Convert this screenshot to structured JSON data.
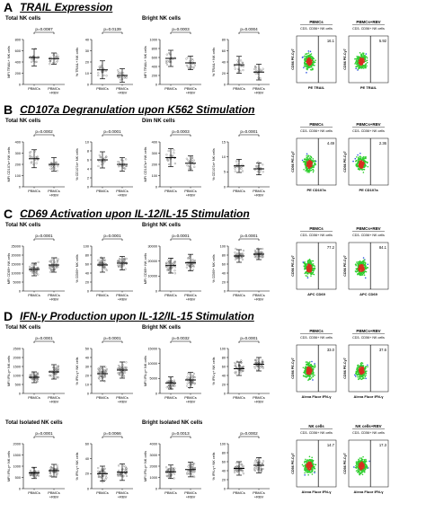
{
  "xcats": [
    "PBMCs",
    "PBMCs +RBV"
  ],
  "colors": {
    "bg": "#ffffff",
    "point": "#666666",
    "bar": "#000000",
    "flowLow": "#2b4fe0",
    "flowHigh": "#2ecf2e",
    "flowPeak": "#d83020"
  },
  "sections": [
    {
      "letter": "A",
      "title": "TRAIL Expression",
      "groups": [
        "Total NK cells",
        "Bright NK cells"
      ],
      "charts": [
        {
          "ylabel": "MFI TRAIL+ NK cells",
          "p": "p=0.0087",
          "yticks": [
            "0",
            "200",
            "400",
            "600",
            "800"
          ],
          "ymax": 800,
          "mean": [
            480,
            460
          ],
          "sd": [
            150,
            100
          ],
          "n": 18
        },
        {
          "ylabel": "% TRAIL+ NK cells",
          "p": "p=0.0139",
          "yticks": [
            "0",
            "10",
            "20",
            "30",
            "40"
          ],
          "ymax": 40,
          "mean": [
            13,
            8
          ],
          "sd": [
            8,
            6
          ],
          "n": 18
        },
        {
          "ylabel": "MFI TRAIL+ NK cells",
          "p": "p=0.0003",
          "yticks": [
            "0",
            "200",
            "400",
            "600",
            "800",
            "1000"
          ],
          "ymax": 1000,
          "mean": [
            580,
            480
          ],
          "sd": [
            180,
            150
          ],
          "n": 18
        },
        {
          "ylabel": "% TRAIL+ NK cells",
          "p": "p=0.0004",
          "yticks": [
            "0",
            "20",
            "40",
            "60",
            "80"
          ],
          "ymax": 80,
          "mean": [
            35,
            22
          ],
          "sd": [
            15,
            14
          ],
          "n": 18
        }
      ],
      "flow": {
        "panels": [
          "PBMCs",
          "PBMCs+RBV"
        ],
        "subtitle": "CD3- CD56+ NK cells",
        "ylabel": "CD56 PE-Cy7",
        "xlabel": "PE TRAIL",
        "values": [
          "16.1",
          "5.92"
        ]
      }
    },
    {
      "letter": "B",
      "title": "CD107a Degranulation upon K562 Stimulation",
      "groups": [
        "Total NK cells",
        "Dim NK cells"
      ],
      "charts": [
        {
          "ylabel": "MFI CD107a+ NK cells",
          "p": "p=0.0002",
          "yticks": [
            "0",
            "100",
            "200",
            "300",
            "400"
          ],
          "ymax": 400,
          "mean": [
            250,
            200
          ],
          "sd": [
            80,
            60
          ],
          "n": 18
        },
        {
          "ylabel": "% CD107a+ NK cells",
          "p": "p=0.0001",
          "yticks": [
            "0",
            "2",
            "4",
            "6",
            "8",
            "10"
          ],
          "ymax": 10,
          "mean": [
            6,
            5
          ],
          "sd": [
            1.8,
            1.5
          ],
          "n": 18
        },
        {
          "ylabel": "MFI CD107a+ NK cells",
          "p": "p=0.0003",
          "yticks": [
            "0",
            "100",
            "200",
            "300",
            "400"
          ],
          "ymax": 400,
          "mean": [
            260,
            210
          ],
          "sd": [
            80,
            65
          ],
          "n": 18
        },
        {
          "ylabel": "% CD107a+ NK cells",
          "p": "p=0.0001",
          "yticks": [
            "0",
            "5",
            "10",
            "15"
          ],
          "ymax": 15,
          "mean": [
            7,
            6
          ],
          "sd": [
            2.2,
            2
          ],
          "n": 18
        }
      ],
      "flow": {
        "panels": [
          "PBMCs",
          "PBMCs+RBV"
        ],
        "subtitle": "CD3- CD56+ NK cells",
        "ylabel": "CD56 PE-Cy7",
        "xlabel": "PE CD107a",
        "values": [
          "4.49",
          "2.36"
        ]
      }
    },
    {
      "letter": "C",
      "title": "CD69 Activation upon IL-12/IL-15 Stimulation",
      "groups": [
        "Total NK cells",
        "Bright NK cells"
      ],
      "charts": [
        {
          "ylabel": "MFI CD69+ NK cells",
          "p": "p=0.0001",
          "yticks": [
            "0",
            "5000",
            "10000",
            "15000",
            "20000",
            "25000"
          ],
          "ymax": 25000,
          "mean": [
            12000,
            14500
          ],
          "sd": [
            3500,
            4000
          ],
          "n": 40
        },
        {
          "ylabel": "% CD69+ NK cells",
          "p": "p=0.0001",
          "yticks": [
            "0",
            "20",
            "40",
            "60",
            "80",
            "100"
          ],
          "ymax": 100,
          "mean": [
            58,
            62
          ],
          "sd": [
            16,
            15
          ],
          "n": 40
        },
        {
          "ylabel": "MFI CD69+ NK cells",
          "p": "p=0.0001",
          "yticks": [
            "0",
            "10000",
            "20000",
            "30000"
          ],
          "ymax": 30000,
          "mean": [
            17000,
            19000
          ],
          "sd": [
            5000,
            5500
          ],
          "n": 40
        },
        {
          "ylabel": "% CD69+ NK cells",
          "p": "p=0.0001",
          "yticks": [
            "0",
            "20",
            "40",
            "60",
            "80",
            "100"
          ],
          "ymax": 100,
          "mean": [
            78,
            82
          ],
          "sd": [
            14,
            12
          ],
          "n": 40
        }
      ],
      "flow": {
        "panels": [
          "PBMCs",
          "PBMCs+RBV"
        ],
        "subtitle": "CD3- CD56+ NK cells",
        "ylabel": "CD56 PE-Cy7",
        "xlabel": "APC CD69",
        "values": [
          "77.2",
          "84.1"
        ]
      }
    },
    {
      "letter": "D",
      "title": "IFN-γ Production upon IL-12/IL-15 Stimulation",
      "groups": [
        "Total NK cells",
        "Bright NK cells",
        "Total Isolated NK cells",
        "Bright Isolated NK cells"
      ],
      "charts": [
        {
          "ylabel": "MFI IFN-γ+ NK cells",
          "p": "p=0.0001",
          "yticks": [
            "0",
            "500",
            "1000",
            "1500",
            "2000",
            "2500"
          ],
          "ymax": 2500,
          "mean": [
            900,
            1200
          ],
          "sd": [
            300,
            400
          ],
          "n": 40
        },
        {
          "ylabel": "% IFN-γ+ NK cells",
          "p": "p=0.0001",
          "yticks": [
            "0",
            "10",
            "20",
            "30",
            "40",
            "50"
          ],
          "ymax": 50,
          "mean": [
            22,
            26
          ],
          "sd": [
            8,
            9
          ],
          "n": 40
        },
        {
          "ylabel": "MFI IFN-γ+ NK cells",
          "p": "p=0.0032",
          "yticks": [
            "0",
            "5000",
            "10000",
            "15000"
          ],
          "ymax": 15000,
          "mean": [
            3500,
            4500
          ],
          "sd": [
            2000,
            2500
          ],
          "n": 40
        },
        {
          "ylabel": "% IFN-γ+ NK cells",
          "p": "p=0.0001",
          "yticks": [
            "0",
            "20",
            "40",
            "60",
            "80",
            "100"
          ],
          "ymax": 100,
          "mean": [
            55,
            65
          ],
          "sd": [
            15,
            15
          ],
          "n": 40
        },
        {
          "ylabel": "MFI IFN-γ+ NK cells",
          "p": "p=0.0001",
          "yticks": [
            "0",
            "500",
            "1000",
            "1500",
            "2000"
          ],
          "ymax": 2000,
          "mean": [
            700,
            800
          ],
          "sd": [
            250,
            280
          ],
          "n": 40
        },
        {
          "ylabel": "% IFN-γ+ NK cells",
          "p": "p=0.0066",
          "yticks": [
            "0",
            "20",
            "40",
            "60"
          ],
          "ymax": 60,
          "mean": [
            20,
            22
          ],
          "sd": [
            10,
            11
          ],
          "n": 40
        },
        {
          "ylabel": "MFI IFN-γ+ NK cells",
          "p": "p=0.0013",
          "yticks": [
            "0",
            "1000",
            "2000",
            "3000",
            "4000"
          ],
          "ymax": 4000,
          "mean": [
            1500,
            1700
          ],
          "sd": [
            600,
            650
          ],
          "n": 40
        },
        {
          "ylabel": "% IFN-γ+ NK cells",
          "p": "p=0.0002",
          "yticks": [
            "0",
            "20",
            "40",
            "60",
            "80",
            "100"
          ],
          "ymax": 100,
          "mean": [
            45,
            52
          ],
          "sd": [
            15,
            17
          ],
          "n": 40
        }
      ],
      "flow": {
        "panels": [
          "PBMCs",
          "PBMCs+RBV"
        ],
        "subtitle": "CD3- CD56+ NK cells",
        "ylabel": "CD56 PE-Cy7",
        "xlabel": "Alexa Fluor IFN-γ",
        "values": [
          "33.0",
          "37.6"
        ]
      },
      "flow2": {
        "panels": [
          "NK cells",
          "NK cells+RBV"
        ],
        "subtitle": "CD3- CD56+ NK cells",
        "ylabel": "CD56 PE-Cy7",
        "xlabel": "Alexa Fluor IFN-γ",
        "values": [
          "14.7",
          "17.3"
        ]
      }
    }
  ]
}
